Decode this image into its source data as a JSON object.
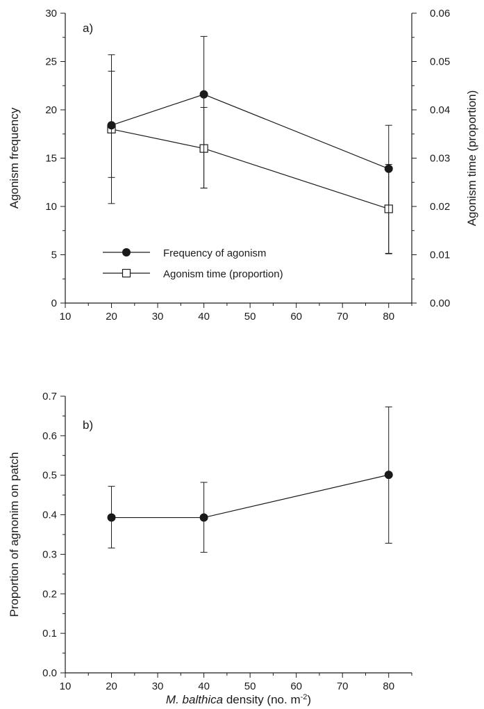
{
  "chart_data": [
    {
      "type": "line",
      "panel_label": "a)",
      "xlabel": "",
      "ylabel": "Agonism frequency",
      "y2label": "Agonism time (proportion)",
      "xlim": [
        10,
        85
      ],
      "ylim": [
        0,
        30
      ],
      "y2lim": [
        0,
        0.06
      ],
      "xticks": [
        "10",
        "20",
        "30",
        "40",
        "50",
        "60",
        "70",
        "80"
      ],
      "yticks": [
        "0",
        "5",
        "10",
        "15",
        "20",
        "25",
        "30"
      ],
      "y2ticks": [
        "0.00",
        "0.01",
        "0.02",
        "0.03",
        "0.04",
        "0.05",
        "0.06"
      ],
      "legend_position": "lower-left",
      "grid": false,
      "series": [
        {
          "name": "Frequency of agonism",
          "axis": "left",
          "marker": "filled-circle",
          "x": [
            20,
            40,
            80
          ],
          "y": [
            18.4,
            21.6,
            13.9
          ],
          "err_low": [
            10.3,
            11.9,
            5.1
          ],
          "err_high": [
            25.7,
            27.6,
            18.4
          ]
        },
        {
          "name": "Agonism time (proportion)",
          "axis": "right",
          "marker": "open-square",
          "x": [
            20,
            40,
            80
          ],
          "y": [
            0.036,
            0.032,
            0.0195
          ],
          "err_low": [
            0.026,
            0.0238,
            0.0103
          ],
          "err_high": [
            0.048,
            0.0405,
            0.0287
          ]
        }
      ]
    },
    {
      "type": "line",
      "panel_label": "b)",
      "xlabel": "M. balthica density (no. m⁻²)",
      "xlabel_parts": {
        "italic": "M. balthica",
        "rest": " density (no. m",
        "sup": "-2",
        "close": ")"
      },
      "ylabel": "Proportion of agnonim on patch",
      "xlim": [
        10,
        85
      ],
      "ylim": [
        0,
        0.7
      ],
      "xticks": [
        "10",
        "20",
        "30",
        "40",
        "50",
        "60",
        "70",
        "80"
      ],
      "yticks": [
        "0.0",
        "0.1",
        "0.2",
        "0.3",
        "0.4",
        "0.5",
        "0.6",
        "0.7"
      ],
      "grid": false,
      "series": [
        {
          "marker": "filled-circle",
          "x": [
            20,
            40,
            80
          ],
          "y": [
            0.393,
            0.393,
            0.501
          ],
          "err_low": [
            0.316,
            0.305,
            0.328
          ],
          "err_high": [
            0.472,
            0.482,
            0.673
          ]
        }
      ]
    }
  ]
}
